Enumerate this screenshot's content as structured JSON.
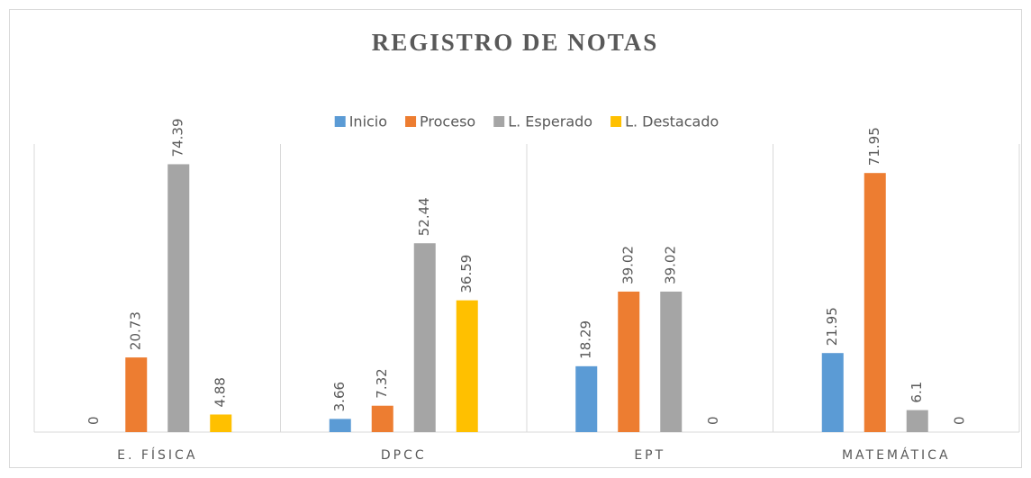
{
  "chart_data": {
    "type": "bar",
    "title": "REGISTRO DE NOTAS",
    "categories": [
      "E. FÍSICA",
      "DPCC",
      "EPT",
      "MATEMÁTICA"
    ],
    "series": [
      {
        "name": "Inicio",
        "color": "#5b9bd5",
        "values": [
          0,
          3.66,
          18.29,
          21.95
        ]
      },
      {
        "name": "Proceso",
        "color": "#ed7d31",
        "values": [
          20.73,
          7.32,
          39.02,
          71.95
        ]
      },
      {
        "name": "L. Esperado",
        "color": "#a5a5a5",
        "values": [
          74.39,
          52.44,
          39.02,
          6.1
        ]
      },
      {
        "name": "L. Destacado",
        "color": "#ffc000",
        "values": [
          4.88,
          36.59,
          0,
          0
        ]
      }
    ],
    "ylim": [
      0,
      85
    ],
    "legend": "top"
  }
}
